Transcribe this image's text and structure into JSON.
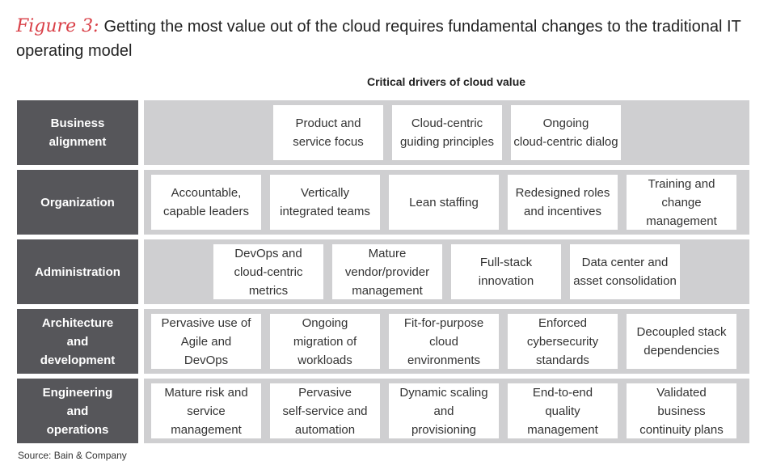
{
  "title": {
    "figure_label": "Figure 3:",
    "text": "Getting the most value out of the cloud requires fundamental changes to the traditional IT operating model"
  },
  "header": "Critical drivers of cloud value",
  "rows": [
    {
      "label": "Business\nalignment",
      "cells": [
        "Product and\nservice focus",
        "Cloud-centric\nguiding principles",
        "Ongoing\ncloud-centric dialog"
      ]
    },
    {
      "label": "Organization",
      "cells": [
        "Accountable,\ncapable leaders",
        "Vertically\nintegrated teams",
        "Lean staffing",
        "Redesigned roles\nand incentives",
        "Training and change\nmanagement"
      ]
    },
    {
      "label": "Administration",
      "cells": [
        "DevOps and\ncloud-centric\nmetrics",
        "Mature\nvendor/provider\nmanagement",
        "Full-stack\ninnovation",
        "Data center and\nasset consolidation"
      ]
    },
    {
      "label": "Architecture\nand\ndevelopment",
      "cells": [
        "Pervasive use of\nAgile and\nDevOps",
        "Ongoing\nmigration of\nworkloads",
        "Fit-for-purpose\ncloud\nenvironments",
        "Enforced\ncybersecurity\nstandards",
        "Decoupled stack\ndependencies"
      ]
    },
    {
      "label": "Engineering\nand\noperations",
      "cells": [
        "Mature risk and\nservice\nmanagement",
        "Pervasive\nself-service and\nautomation",
        "Dynamic scaling\nand\nprovisioning",
        "End-to-end\nquality\nmanagement",
        "Validated\nbusiness\ncontinuity plans"
      ]
    }
  ],
  "source": "Source: Bain & Company"
}
